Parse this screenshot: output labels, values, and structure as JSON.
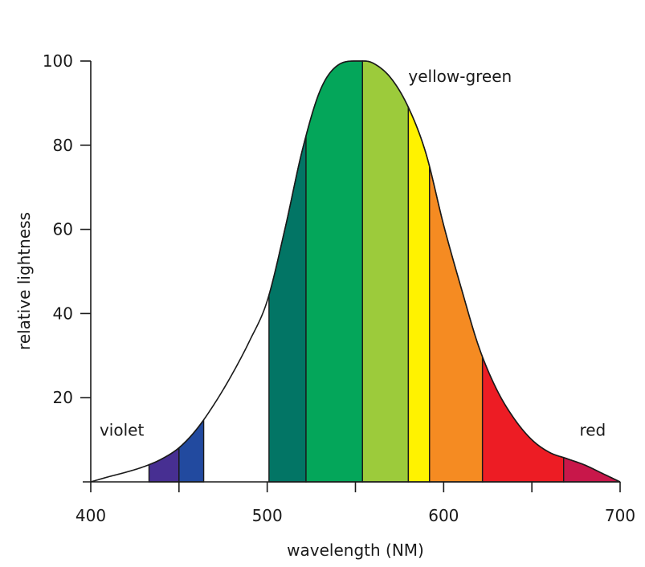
{
  "chart_data": {
    "type": "area",
    "title": "",
    "xlabel": "wavelength (NM)",
    "ylabel": "relative lightness",
    "xlim": [
      400,
      700
    ],
    "ylim": [
      0,
      100
    ],
    "x_ticks": [
      400,
      500,
      600,
      700
    ],
    "x_minor_ticks": [
      450,
      550,
      650
    ],
    "y_ticks": [
      20,
      40,
      60,
      80,
      100
    ],
    "curve": {
      "x": [
        400,
        410,
        420,
        430,
        440,
        450,
        460,
        470,
        480,
        490,
        500,
        510,
        520,
        530,
        540,
        550,
        555,
        560,
        570,
        580,
        590,
        600,
        610,
        620,
        630,
        640,
        650,
        660,
        670,
        680,
        690,
        700
      ],
      "y": [
        0,
        1.2,
        2.3,
        3.6,
        5.4,
        8.1,
        12.5,
        18.5,
        25.5,
        33.5,
        43,
        60,
        79,
        93,
        99,
        100,
        100,
        99.5,
        96,
        89,
        78,
        61,
        46,
        32,
        22,
        15,
        10,
        7,
        5.5,
        4,
        2,
        0
      ]
    },
    "bands": [
      {
        "from": 433,
        "to": 450,
        "color": "#472f92"
      },
      {
        "from": 450,
        "to": 464,
        "color": "#224a9f"
      },
      {
        "from": 501,
        "to": 522,
        "color": "#027565"
      },
      {
        "from": 522,
        "to": 554,
        "color": "#04a65a"
      },
      {
        "from": 554,
        "to": 580,
        "color": "#9ccb3b"
      },
      {
        "from": 580,
        "to": 592,
        "color": "#fff200"
      },
      {
        "from": 592,
        "to": 622,
        "color": "#f58b22"
      },
      {
        "from": 622,
        "to": 668,
        "color": "#ed1c24"
      },
      {
        "from": 668,
        "to": 700,
        "color": "#c8174a"
      }
    ],
    "annotations": [
      {
        "text": "violet",
        "x": 405,
        "y": 11
      },
      {
        "text": "yellow-green",
        "x": 580,
        "y": 95
      },
      {
        "text": "red",
        "x": 677,
        "y": 11
      }
    ],
    "grid": false,
    "legend": "none"
  }
}
